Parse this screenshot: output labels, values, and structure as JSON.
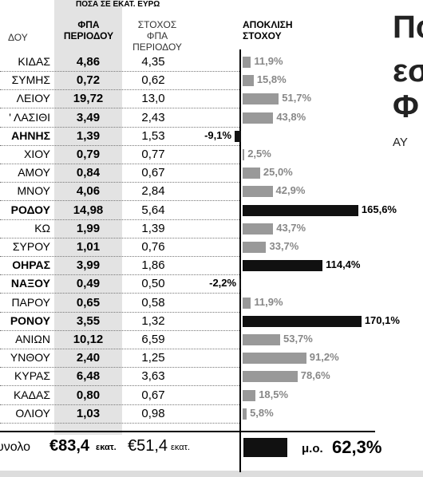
{
  "header": {
    "note": "ΠΟΣΑ ΣΕ ΕΚΑΤ. ΕΥΡΩ",
    "col_name": "ΔΟΥ",
    "col_vat": "ΦΠΑ ΠΕΡΙΟΔΟΥ",
    "col_target": "ΣΤΟΧΟΣ ΦΠΑ ΠΕΡΙΟΔΟΥ",
    "col_dev": "ΑΠΟΚΛΙΣΗ ΣΤΟΧΟΥ"
  },
  "side_title": [
    "Πο",
    "εσ",
    "Φ",
    "ΑΥ"
  ],
  "table": {
    "rows": [
      {
        "name": "ΚΙΔΑΣ",
        "vat": "4,86",
        "target": "4,35",
        "dev": 11.9,
        "dev_label": "11,9%"
      },
      {
        "name": "ΣΥΜΗΣ",
        "vat": "0,72",
        "target": "0,62",
        "dev": 15.8,
        "dev_label": "15,8%"
      },
      {
        "name": "ΛΕΙΟΥ",
        "vat": "19,72",
        "target": "13,0",
        "dev": 51.7,
        "dev_label": "51,7%"
      },
      {
        "name": "' ΛΑΣΙΘΙ",
        "vat": "3,49",
        "target": "2,43",
        "dev": 43.8,
        "dev_label": "43,8%"
      },
      {
        "name": "ΑΗΝΗΣ",
        "vat": "1,39",
        "target": "1,53",
        "dev": -9.1,
        "dev_label": "-9,1%"
      },
      {
        "name": "ΧΙΟΥ",
        "vat": "0,79",
        "target": "0,77",
        "dev": 2.5,
        "dev_label": "2,5%"
      },
      {
        "name": "ΑΜΟΥ",
        "vat": "0,84",
        "target": "0,67",
        "dev": 25.0,
        "dev_label": "25,0%"
      },
      {
        "name": "ΜΝΟΥ",
        "vat": "4,06",
        "target": "2,84",
        "dev": 42.9,
        "dev_label": "42,9%"
      },
      {
        "name": "ΡΟΔΟΥ",
        "vat": "14,98",
        "target": "5,64",
        "dev": 165.6,
        "dev_label": "165,6%"
      },
      {
        "name": "ΚΩ",
        "vat": "1,99",
        "target": "1,39",
        "dev": 43.7,
        "dev_label": "43,7%"
      },
      {
        "name": "ΣΥΡΟΥ",
        "vat": "1,01",
        "target": "0,76",
        "dev": 33.7,
        "dev_label": "33,7%"
      },
      {
        "name": "ΟΗΡΑΣ",
        "vat": "3,99",
        "target": "1,86",
        "dev": 114.4,
        "dev_label": "114,4%"
      },
      {
        "name": "ΝΑΞΟΥ",
        "vat": "0,49",
        "target": "0,50",
        "dev": -2.2,
        "dev_label": "-2,2%"
      },
      {
        "name": "ΠΑΡΟΥ",
        "vat": "0,65",
        "target": "0,58",
        "dev": 11.9,
        "dev_label": "11,9%"
      },
      {
        "name": "ΡΟΝΟΥ",
        "vat": "3,55",
        "target": "1,32",
        "dev": 170.1,
        "dev_label": "170,1%"
      },
      {
        "name": "ΑΝΙΩΝ",
        "vat": "10,12",
        "target": "6,59",
        "dev": 53.7,
        "dev_label": "53,7%"
      },
      {
        "name": "ΥΝΘΟΥ",
        "vat": "2,40",
        "target": "1,25",
        "dev": 91.2,
        "dev_label": "91,2%"
      },
      {
        "name": "ΚΥΡΑΣ",
        "vat": "6,48",
        "target": "3,63",
        "dev": 78.6,
        "dev_label": "78,6%"
      },
      {
        "name": "ΚΑΔΑΣ",
        "vat": "0,80",
        "target": "0,67",
        "dev": 18.5,
        "dev_label": "18,5%"
      },
      {
        "name": "ΟΛΙΟΥ",
        "vat": "1,03",
        "target": "0,98",
        "dev": 5.8,
        "dev_label": "5,8%"
      }
    ],
    "total": {
      "name": "υνολο",
      "vat": "€83,4",
      "vat_unit": "εκατ.",
      "target": "€51,4",
      "target_unit": "εκατ.",
      "avg_prefix": "μ.ο.",
      "avg": 62.3,
      "avg_label": "62,3%"
    }
  }
}
